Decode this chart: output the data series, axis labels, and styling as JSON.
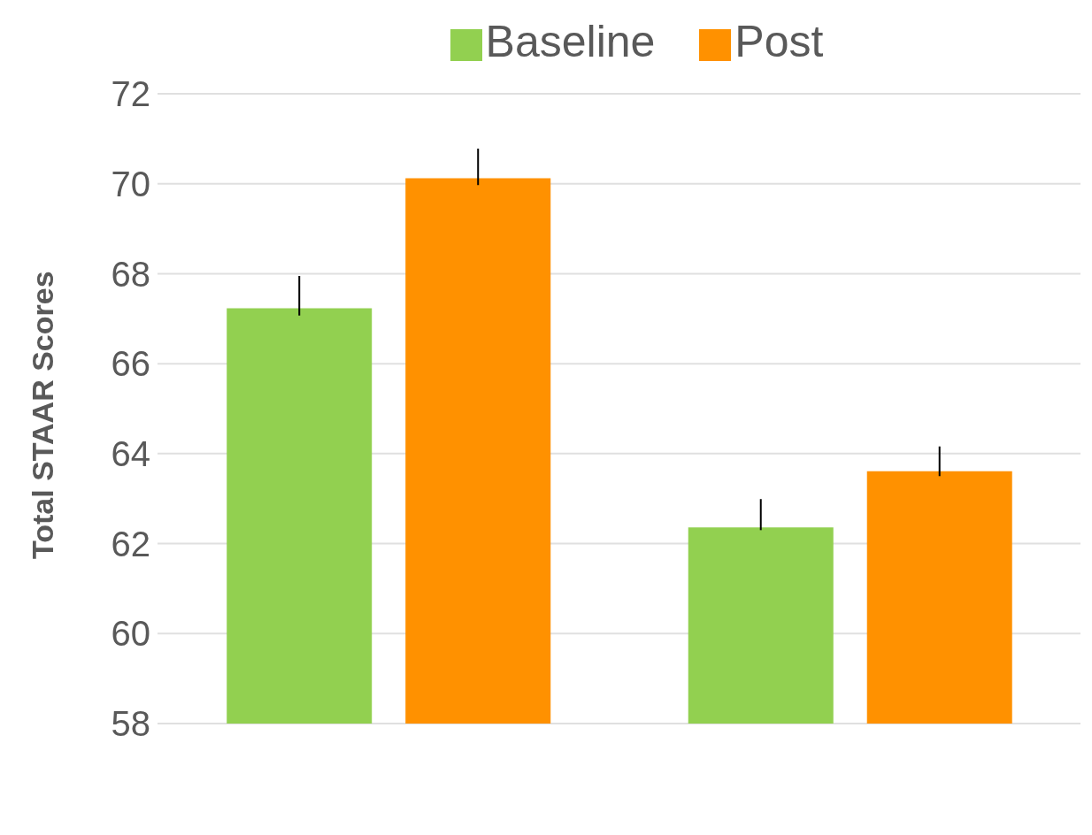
{
  "chart_data": {
    "type": "bar",
    "ylabel": "Total STAAR Scores",
    "categories": [
      null,
      null
    ],
    "series": [
      {
        "name": "Baseline",
        "color": "#92d050",
        "values": [
          67.23,
          62.36
        ],
        "errors": [
          [
            67.07,
            67.95
          ],
          [
            62.3,
            62.99
          ]
        ]
      },
      {
        "name": "Post",
        "color": "#ff9100",
        "values": [
          70.12,
          63.61
        ],
        "errors": [
          [
            69.97,
            70.78
          ],
          [
            63.5,
            64.16
          ]
        ]
      }
    ],
    "ylim": [
      58,
      72
    ],
    "yticks": [
      58,
      60,
      62,
      64,
      66,
      68,
      70,
      72
    ],
    "grid": "y",
    "legend": "top"
  }
}
